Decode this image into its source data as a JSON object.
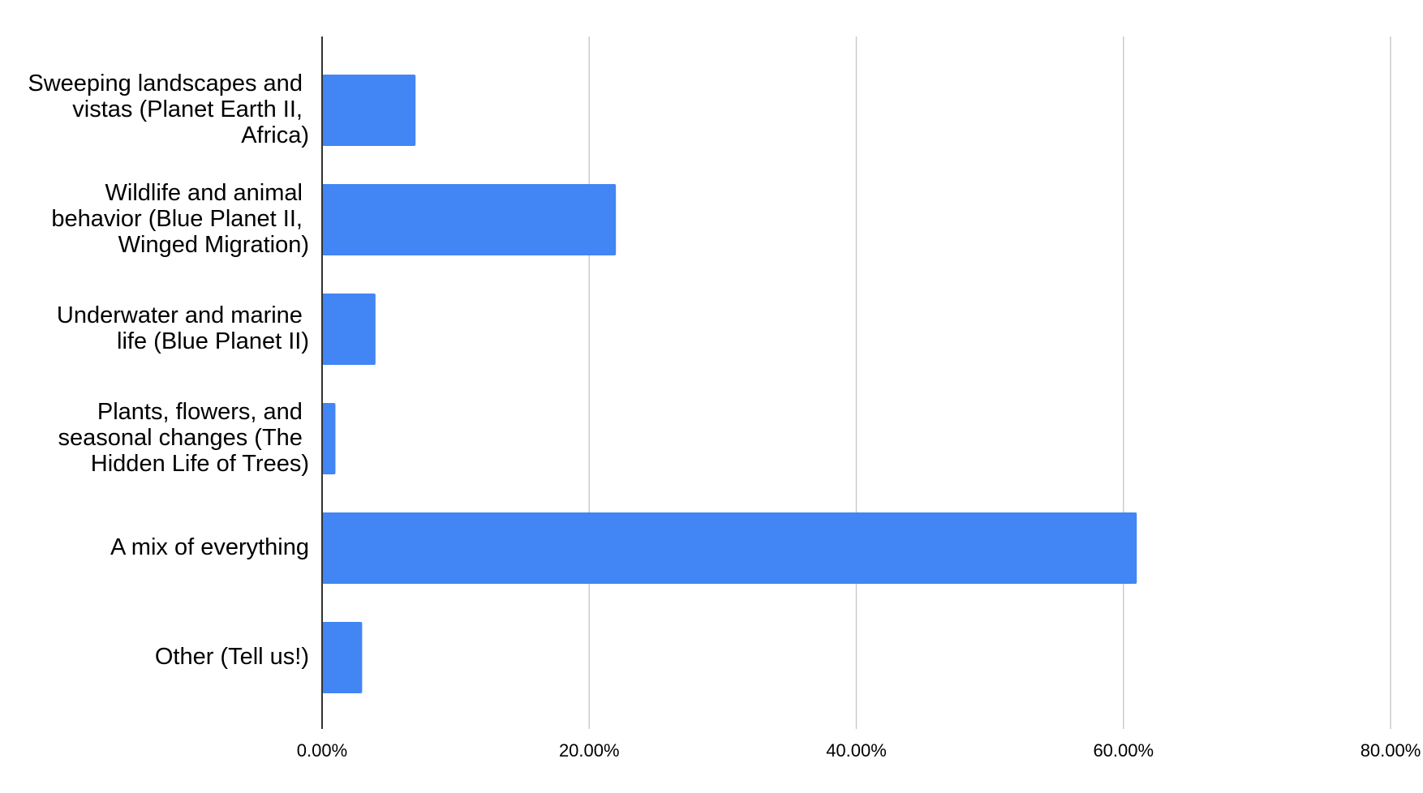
{
  "chart_data": {
    "type": "bar",
    "orientation": "horizontal",
    "categories": [
      "Sweeping landscapes and vistas (Planet Earth II, Africa)",
      "Wildlife and animal behavior (Blue Planet II, Winged Migration)",
      "Underwater and marine life (Blue Planet II)",
      "Plants, flowers, and seasonal changes (The Hidden Life of Trees)",
      "A mix of everything",
      "Other (Tell us!)"
    ],
    "values": [
      7,
      22,
      4,
      1,
      61,
      3
    ],
    "color": "#4285f4",
    "xlim": [
      0,
      80
    ],
    "xticks": [
      {
        "value": 0,
        "label": "0.00%"
      },
      {
        "value": 20,
        "label": "20.00%"
      },
      {
        "value": 40,
        "label": "40.00%"
      },
      {
        "value": 60,
        "label": "60.00%"
      },
      {
        "value": 80,
        "label": "80.00%"
      }
    ],
    "grid": true
  }
}
